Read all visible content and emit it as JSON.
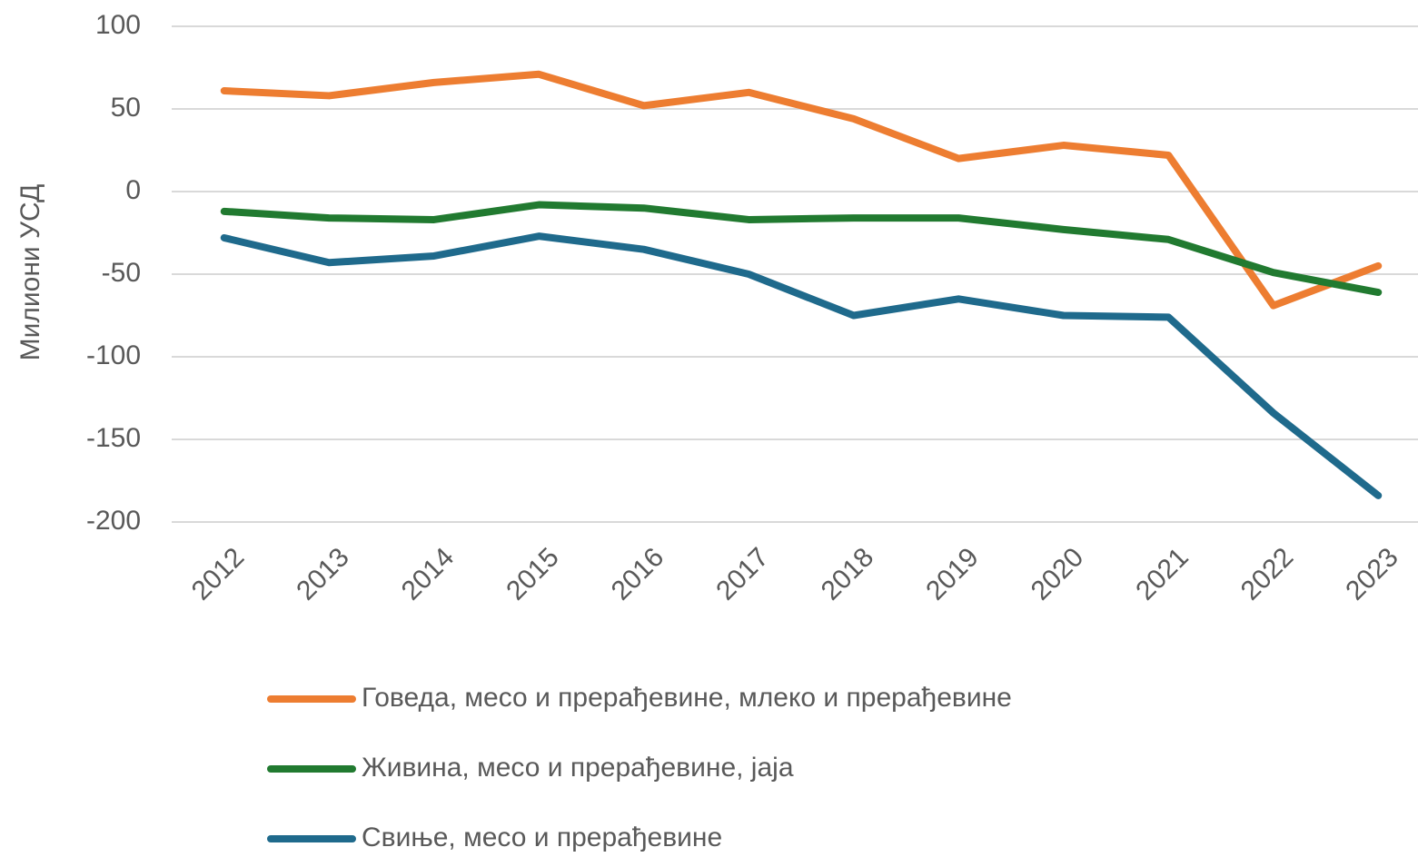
{
  "chart_data": {
    "type": "line",
    "y_label": "Милиони УСД",
    "categories": [
      "2012",
      "2013",
      "2014",
      "2015",
      "2016",
      "2017",
      "2018",
      "2019",
      "2020",
      "2021",
      "2022",
      "2023"
    ],
    "series": [
      {
        "name": "Говеда, месо и прерађевине, млеко и прерађевине",
        "color": "#ed7d31",
        "values": [
          61,
          58,
          66,
          71,
          52,
          60,
          44,
          20,
          28,
          22,
          -69,
          -45
        ]
      },
      {
        "name": "Живина, месо и прерађевине, јаја",
        "color": "#217a30",
        "values": [
          -12,
          -16,
          -17,
          -8,
          -10,
          -17,
          -16,
          -16,
          -23,
          -29,
          -49,
          -61
        ]
      },
      {
        "name": "Свиње, месо и прерађевине",
        "color": "#1f6a8c",
        "values": [
          -28,
          -43,
          -39,
          -27,
          -35,
          -50,
          -75,
          -65,
          -75,
          -76,
          -134,
          -184
        ]
      }
    ],
    "ylim": [
      -200,
      100
    ],
    "yticks": [
      -200,
      -150,
      -100,
      -50,
      0,
      50,
      100
    ],
    "grid": true,
    "legend": "bottom"
  }
}
